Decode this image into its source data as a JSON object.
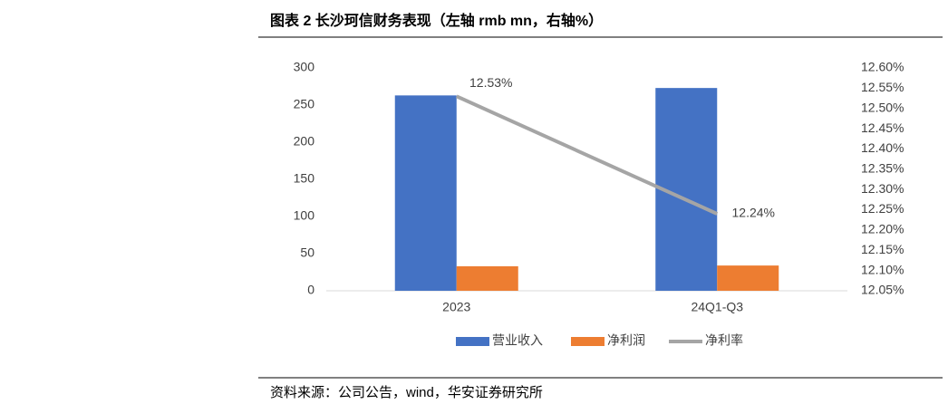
{
  "chart_data": {
    "type": "bar",
    "title": "图表 2 长沙珂信财务表现（左轴 rmb mn，右轴%）",
    "categories": [
      "2023",
      "24Q1-Q3"
    ],
    "series": [
      {
        "name": "营业收入",
        "color": "#4472c4",
        "values": [
          263,
          273
        ]
      },
      {
        "name": "净利润",
        "color": "#ed7d31",
        "values": [
          33,
          34
        ]
      },
      {
        "name": "净利率",
        "color": "#a5a5a5",
        "type": "line",
        "axis": "y2",
        "values": [
          12.53,
          12.24
        ],
        "value_labels": [
          "12.53%",
          "12.24%"
        ]
      }
    ],
    "ylim": [
      0,
      300
    ],
    "yticks": [
      0,
      50,
      100,
      150,
      200,
      250,
      300
    ],
    "y2lim": [
      12.05,
      12.6
    ],
    "y2ticks": [
      {
        "value": 12.05,
        "label": "12.05%"
      },
      {
        "value": 12.1,
        "label": "12.10%"
      },
      {
        "value": 12.15,
        "label": "12.15%"
      },
      {
        "value": 12.2,
        "label": "12.20%"
      },
      {
        "value": 12.25,
        "label": "12.25%"
      },
      {
        "value": 12.3,
        "label": "12.30%"
      },
      {
        "value": 12.35,
        "label": "12.35%"
      },
      {
        "value": 12.4,
        "label": "12.40%"
      },
      {
        "value": 12.45,
        "label": "12.45%"
      },
      {
        "value": 12.5,
        "label": "12.50%"
      },
      {
        "value": 12.55,
        "label": "12.55%"
      },
      {
        "value": 12.6,
        "label": "12.60%"
      }
    ],
    "legend": "bottom",
    "source": "资料来源：公司公告，wind，华安证券研究所"
  }
}
